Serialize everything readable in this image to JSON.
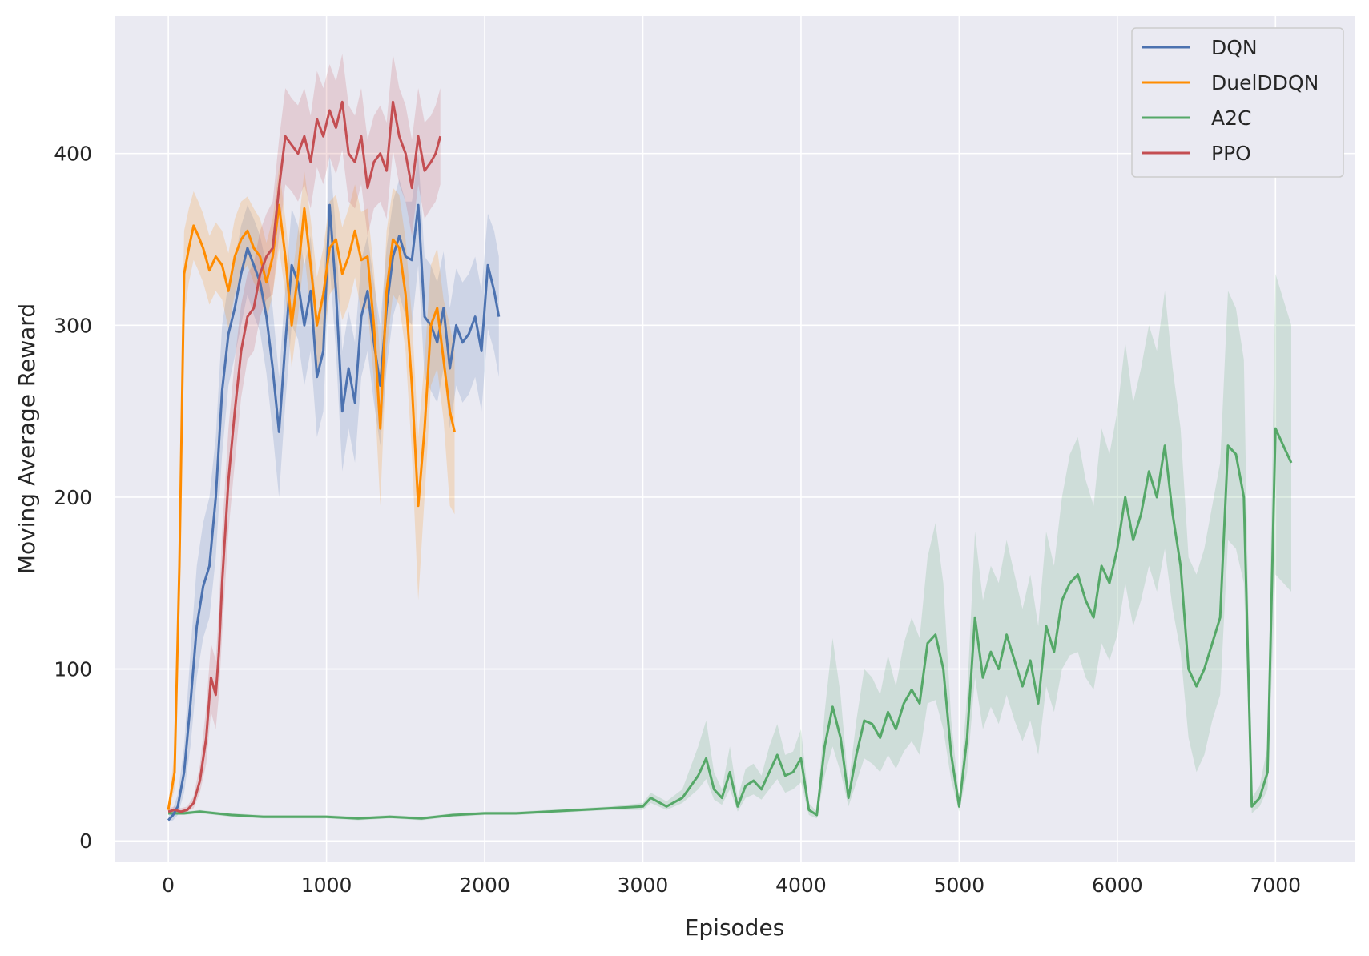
{
  "chart_data": {
    "type": "line",
    "xlabel": "Episodes",
    "ylabel": "Moving Average Reward",
    "xlim": [
      -340,
      7500
    ],
    "ylim": [
      -12,
      480
    ],
    "xticks": [
      0,
      1000,
      2000,
      3000,
      4000,
      5000,
      6000,
      7000
    ],
    "yticks": [
      0,
      100,
      200,
      300,
      400
    ],
    "grid": true,
    "legend_position": "top-right",
    "colors": {
      "background": "#eaeaf2",
      "grid": "#ffffff",
      "text": "#262626"
    },
    "series": [
      {
        "name": "DQN",
        "color": "#4c72b0",
        "x": [
          0,
          30,
          60,
          100,
          140,
          180,
          220,
          260,
          300,
          340,
          380,
          420,
          460,
          500,
          540,
          580,
          620,
          660,
          700,
          740,
          780,
          820,
          860,
          900,
          940,
          980,
          1020,
          1060,
          1100,
          1140,
          1180,
          1220,
          1260,
          1300,
          1340,
          1380,
          1420,
          1460,
          1500,
          1540,
          1580,
          1620,
          1660,
          1700,
          1740,
          1780,
          1820,
          1860,
          1900,
          1940,
          1980,
          2020,
          2060,
          2090
        ],
        "y": [
          12,
          15,
          20,
          40,
          80,
          125,
          148,
          160,
          200,
          262,
          295,
          310,
          330,
          345,
          335,
          325,
          305,
          275,
          238,
          290,
          335,
          325,
          300,
          320,
          270,
          285,
          370,
          320,
          250,
          275,
          255,
          305,
          320,
          290,
          265,
          310,
          340,
          352,
          340,
          338,
          370,
          305,
          300,
          290,
          310,
          275,
          300,
          290,
          295,
          305,
          285,
          335,
          320,
          305
        ],
        "band_lo": [
          11,
          12,
          15,
          28,
          55,
          95,
          118,
          130,
          165,
          225,
          265,
          282,
          300,
          318,
          306,
          296,
          272,
          238,
          200,
          255,
          300,
          292,
          265,
          285,
          235,
          250,
          335,
          285,
          215,
          240,
          220,
          270,
          285,
          255,
          230,
          275,
          305,
          318,
          305,
          300,
          335,
          270,
          262,
          255,
          275,
          240,
          265,
          255,
          260,
          270,
          250,
          298,
          285,
          270
        ],
        "band_hi": [
          14,
          19,
          27,
          55,
          110,
          160,
          185,
          200,
          235,
          300,
          325,
          338,
          358,
          370,
          362,
          352,
          335,
          310,
          270,
          322,
          368,
          358,
          335,
          352,
          305,
          320,
          400,
          355,
          285,
          308,
          290,
          338,
          352,
          325,
          300,
          345,
          372,
          385,
          372,
          372,
          400,
          340,
          335,
          325,
          343,
          310,
          333,
          325,
          330,
          340,
          320,
          365,
          355,
          340
        ]
      },
      {
        "name": "DuelDDQN",
        "color": "#ff8c00",
        "x": [
          0,
          40,
          70,
          100,
          130,
          160,
          190,
          220,
          260,
          300,
          340,
          380,
          420,
          460,
          500,
          540,
          580,
          620,
          660,
          700,
          740,
          780,
          820,
          860,
          900,
          940,
          980,
          1020,
          1060,
          1100,
          1140,
          1180,
          1220,
          1260,
          1300,
          1340,
          1380,
          1420,
          1460,
          1500,
          1540,
          1580,
          1620,
          1660,
          1700,
          1740,
          1780,
          1810
        ],
        "y": [
          18,
          40,
          160,
          330,
          345,
          358,
          352,
          345,
          332,
          340,
          335,
          320,
          340,
          350,
          355,
          345,
          340,
          325,
          340,
          370,
          340,
          300,
          330,
          368,
          335,
          300,
          318,
          345,
          350,
          330,
          340,
          355,
          338,
          340,
          300,
          240,
          320,
          350,
          345,
          318,
          265,
          195,
          240,
          300,
          310,
          280,
          250,
          238
        ],
        "band_lo": [
          16,
          30,
          130,
          305,
          325,
          338,
          332,
          325,
          312,
          320,
          315,
          298,
          318,
          330,
          335,
          325,
          318,
          303,
          318,
          345,
          318,
          275,
          305,
          342,
          308,
          272,
          290,
          318,
          323,
          303,
          312,
          328,
          308,
          310,
          268,
          195,
          285,
          318,
          312,
          285,
          225,
          140,
          200,
          265,
          275,
          245,
          195,
          190
        ],
        "band_hi": [
          20,
          52,
          190,
          355,
          368,
          378,
          372,
          365,
          352,
          360,
          355,
          342,
          362,
          372,
          375,
          368,
          362,
          348,
          362,
          392,
          362,
          325,
          355,
          390,
          362,
          328,
          345,
          372,
          376,
          357,
          368,
          382,
          366,
          368,
          332,
          280,
          355,
          380,
          376,
          350,
          305,
          235,
          280,
          335,
          345,
          315,
          300,
          285
        ]
      },
      {
        "name": "A2C",
        "color": "#55a868",
        "x": [
          0,
          100,
          200,
          400,
          600,
          800,
          1000,
          1200,
          1400,
          1600,
          1800,
          2000,
          2200,
          2400,
          2600,
          2800,
          3000,
          3050,
          3150,
          3250,
          3350,
          3400,
          3450,
          3500,
          3550,
          3600,
          3650,
          3700,
          3750,
          3800,
          3850,
          3900,
          3950,
          4000,
          4050,
          4100,
          4150,
          4200,
          4250,
          4300,
          4350,
          4400,
          4450,
          4500,
          4550,
          4600,
          4650,
          4700,
          4750,
          4800,
          4850,
          4900,
          4950,
          5000,
          5050,
          5100,
          5150,
          5200,
          5250,
          5300,
          5350,
          5400,
          5450,
          5500,
          5550,
          5600,
          5650,
          5700,
          5750,
          5800,
          5850,
          5900,
          5950,
          6000,
          6050,
          6100,
          6150,
          6200,
          6250,
          6300,
          6350,
          6400,
          6450,
          6500,
          6550,
          6600,
          6650,
          6700,
          6750,
          6800,
          6850,
          6900,
          6950,
          7000,
          7050,
          7100
        ],
        "y": [
          16,
          16,
          17,
          15,
          14,
          14,
          14,
          13,
          14,
          13,
          15,
          16,
          16,
          17,
          18,
          19,
          20,
          25,
          20,
          25,
          38,
          48,
          30,
          25,
          40,
          20,
          32,
          35,
          30,
          40,
          50,
          38,
          40,
          48,
          18,
          15,
          55,
          78,
          60,
          25,
          50,
          70,
          68,
          60,
          75,
          65,
          80,
          88,
          80,
          115,
          120,
          100,
          50,
          20,
          60,
          130,
          95,
          110,
          100,
          120,
          105,
          90,
          105,
          80,
          125,
          110,
          140,
          150,
          155,
          140,
          130,
          160,
          150,
          170,
          200,
          175,
          190,
          215,
          200,
          230,
          190,
          160,
          100,
          90,
          100,
          115,
          130,
          230,
          225,
          200,
          20,
          25,
          40,
          240,
          230,
          220
        ],
        "band_lo": [
          15,
          15,
          16,
          14,
          13,
          13,
          13,
          12,
          13,
          12,
          14,
          15,
          15,
          16,
          17,
          18,
          18,
          22,
          18,
          22,
          30,
          36,
          24,
          21,
          30,
          17,
          25,
          27,
          24,
          30,
          36,
          28,
          30,
          34,
          15,
          13,
          38,
          55,
          40,
          20,
          34,
          48,
          45,
          40,
          50,
          42,
          52,
          58,
          50,
          80,
          82,
          65,
          35,
          17,
          40,
          95,
          65,
          78,
          68,
          85,
          70,
          58,
          70,
          50,
          90,
          75,
          100,
          108,
          110,
          95,
          88,
          115,
          105,
          120,
          150,
          125,
          140,
          160,
          145,
          170,
          135,
          110,
          60,
          40,
          50,
          70,
          85,
          175,
          170,
          150,
          16,
          20,
          30,
          155,
          150,
          145
        ],
        "band_hi": [
          17,
          17,
          18,
          16,
          15,
          15,
          15,
          14,
          15,
          14,
          16,
          17,
          17,
          18,
          19,
          20,
          22,
          28,
          23,
          30,
          55,
          70,
          40,
          30,
          55,
          25,
          42,
          45,
          38,
          55,
          68,
          50,
          52,
          65,
          22,
          17,
          75,
          118,
          85,
          32,
          70,
          100,
          95,
          85,
          108,
          90,
          115,
          130,
          118,
          165,
          185,
          150,
          70,
          25,
          85,
          180,
          140,
          160,
          150,
          175,
          155,
          135,
          155,
          125,
          180,
          160,
          200,
          225,
          235,
          210,
          195,
          240,
          225,
          250,
          290,
          255,
          275,
          300,
          285,
          320,
          275,
          240,
          165,
          155,
          170,
          195,
          220,
          320,
          310,
          280,
          25,
          32,
          55,
          330,
          315,
          300
        ]
      },
      {
        "name": "PPO",
        "color": "#c44e52",
        "x": [
          0,
          40,
          80,
          120,
          160,
          200,
          240,
          270,
          300,
          320,
          340,
          380,
          420,
          460,
          500,
          540,
          580,
          620,
          660,
          700,
          740,
          780,
          820,
          860,
          900,
          940,
          980,
          1020,
          1060,
          1100,
          1140,
          1180,
          1220,
          1260,
          1300,
          1340,
          1380,
          1420,
          1460,
          1500,
          1540,
          1580,
          1620,
          1660,
          1690,
          1720
        ],
        "y": [
          17,
          18,
          17,
          18,
          22,
          35,
          60,
          95,
          85,
          110,
          150,
          210,
          250,
          285,
          305,
          310,
          330,
          340,
          345,
          380,
          410,
          405,
          400,
          410,
          395,
          420,
          410,
          425,
          415,
          430,
          400,
          395,
          410,
          380,
          395,
          400,
          390,
          430,
          410,
          400,
          380,
          410,
          390,
          395,
          400,
          410
        ],
        "band_lo": [
          16,
          17,
          16,
          17,
          19,
          28,
          45,
          75,
          65,
          85,
          120,
          180,
          220,
          258,
          280,
          285,
          305,
          315,
          318,
          352,
          382,
          378,
          372,
          382,
          368,
          392,
          382,
          398,
          388,
          402,
          372,
          368,
          382,
          352,
          368,
          372,
          362,
          402,
          382,
          372,
          352,
          382,
          362,
          368,
          372,
          382
        ],
        "band_hi": [
          19,
          20,
          19,
          20,
          26,
          44,
          78,
          115,
          105,
          135,
          180,
          240,
          280,
          312,
          330,
          336,
          355,
          365,
          372,
          408,
          438,
          432,
          428,
          438,
          422,
          448,
          438,
          452,
          442,
          458,
          428,
          422,
          438,
          408,
          422,
          428,
          418,
          458,
          438,
          428,
          408,
          438,
          418,
          422,
          428,
          438
        ]
      }
    ]
  }
}
